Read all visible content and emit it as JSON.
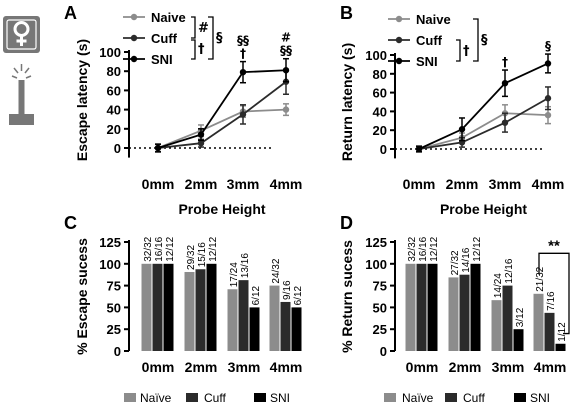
{
  "figure": {
    "icon_female": "female-symbol-icon",
    "icon_probe": "probe-icon",
    "colors": {
      "naive": "#8c8c8c",
      "cuff": "#2b2b2b",
      "sni": "#000000"
    }
  },
  "chart_data": [
    {
      "panel": "A",
      "type": "line",
      "xlabel": "Probe Height",
      "ylabel": "Escape latency (s)",
      "ylim": [
        0,
        100
      ],
      "yticks": [
        0,
        20,
        40,
        60,
        80,
        100
      ],
      "categories": [
        "0mm",
        "2mm",
        "3mm",
        "4mm"
      ],
      "series": [
        {
          "name": "Naive",
          "values": [
            0,
            18,
            38,
            40
          ],
          "errors": [
            4,
            6,
            6,
            6
          ]
        },
        {
          "name": "Cuff",
          "values": [
            0,
            5,
            35,
            69
          ],
          "errors": [
            4,
            4,
            10,
            13
          ]
        },
        {
          "name": "SNI",
          "values": [
            0,
            14,
            79,
            81
          ],
          "errors": [
            4,
            6,
            11,
            12
          ]
        }
      ],
      "legend_marks": [
        "#",
        "†",
        "§"
      ],
      "annotations": [
        {
          "category": "3mm",
          "top": "§§",
          "bottom": "†"
        },
        {
          "category": "4mm",
          "top": "#",
          "bottom": "§§"
        }
      ],
      "grid": false
    },
    {
      "panel": "B",
      "type": "line",
      "xlabel": "Probe Height",
      "ylabel": "Return latency (s)",
      "ylim": [
        0,
        100
      ],
      "yticks": [
        0,
        20,
        40,
        60,
        80,
        100
      ],
      "categories": [
        "0mm",
        "2mm",
        "3mm",
        "4mm"
      ],
      "series": [
        {
          "name": "Naive",
          "values": [
            0,
            12,
            38,
            36
          ],
          "errors": [
            3,
            5,
            9,
            9
          ]
        },
        {
          "name": "Cuff",
          "values": [
            0,
            7,
            28,
            54
          ],
          "errors": [
            3,
            5,
            10,
            12
          ]
        },
        {
          "name": "SNI",
          "values": [
            0,
            21,
            70,
            91
          ],
          "errors": [
            3,
            12,
            14,
            10
          ]
        }
      ],
      "legend_marks": [
        "†",
        "§"
      ],
      "annotations": [
        {
          "category": "3mm",
          "top": "†"
        },
        {
          "category": "4mm",
          "top": "§"
        }
      ],
      "grid": false
    },
    {
      "panel": "C",
      "type": "bar",
      "ylabel": "% Escape sucess",
      "ylim": [
        0,
        125
      ],
      "yticks": [
        0,
        25,
        50,
        75,
        100,
        125
      ],
      "categories": [
        "0mm",
        "2mm",
        "3mm",
        "4mm"
      ],
      "series": [
        {
          "name": "Naïve",
          "values": [
            100,
            90.6,
            70.8,
            75
          ],
          "labels": [
            "32/32",
            "29/32",
            "17/24",
            "24/32"
          ]
        },
        {
          "name": "Cuff",
          "values": [
            100,
            93.75,
            81.25,
            56.25
          ],
          "labels": [
            "16/16",
            "15/16",
            "13/16",
            "9/16"
          ]
        },
        {
          "name": "SNI",
          "values": [
            100,
            100,
            50,
            50
          ],
          "labels": [
            "12/12",
            "12/12",
            "6/12",
            "6/12"
          ]
        }
      ]
    },
    {
      "panel": "D",
      "type": "bar",
      "ylabel": "% Return sucess",
      "ylim": [
        0,
        125
      ],
      "yticks": [
        0,
        25,
        50,
        75,
        100,
        125
      ],
      "categories": [
        "0mm",
        "2mm",
        "3mm",
        "4mm"
      ],
      "series": [
        {
          "name": "Naïve",
          "values": [
            100,
            84.4,
            58.3,
            65.6
          ],
          "labels": [
            "32/32",
            "27/32",
            "14/24",
            "21/32"
          ]
        },
        {
          "name": "Cuff",
          "values": [
            100,
            87.5,
            75,
            43.75
          ],
          "labels": [
            "16/16",
            "14/16",
            "12/16",
            "7/16"
          ]
        },
        {
          "name": "SNI",
          "values": [
            100,
            100,
            25,
            8.3
          ],
          "labels": [
            "12/12",
            "12/12",
            "3/12",
            "1/12"
          ]
        }
      ],
      "significance": {
        "text": "**",
        "category": "4mm",
        "from": "Naïve",
        "to": "SNI"
      }
    }
  ],
  "bar_legend": [
    "Naïve",
    "Cuff",
    "SNI"
  ]
}
